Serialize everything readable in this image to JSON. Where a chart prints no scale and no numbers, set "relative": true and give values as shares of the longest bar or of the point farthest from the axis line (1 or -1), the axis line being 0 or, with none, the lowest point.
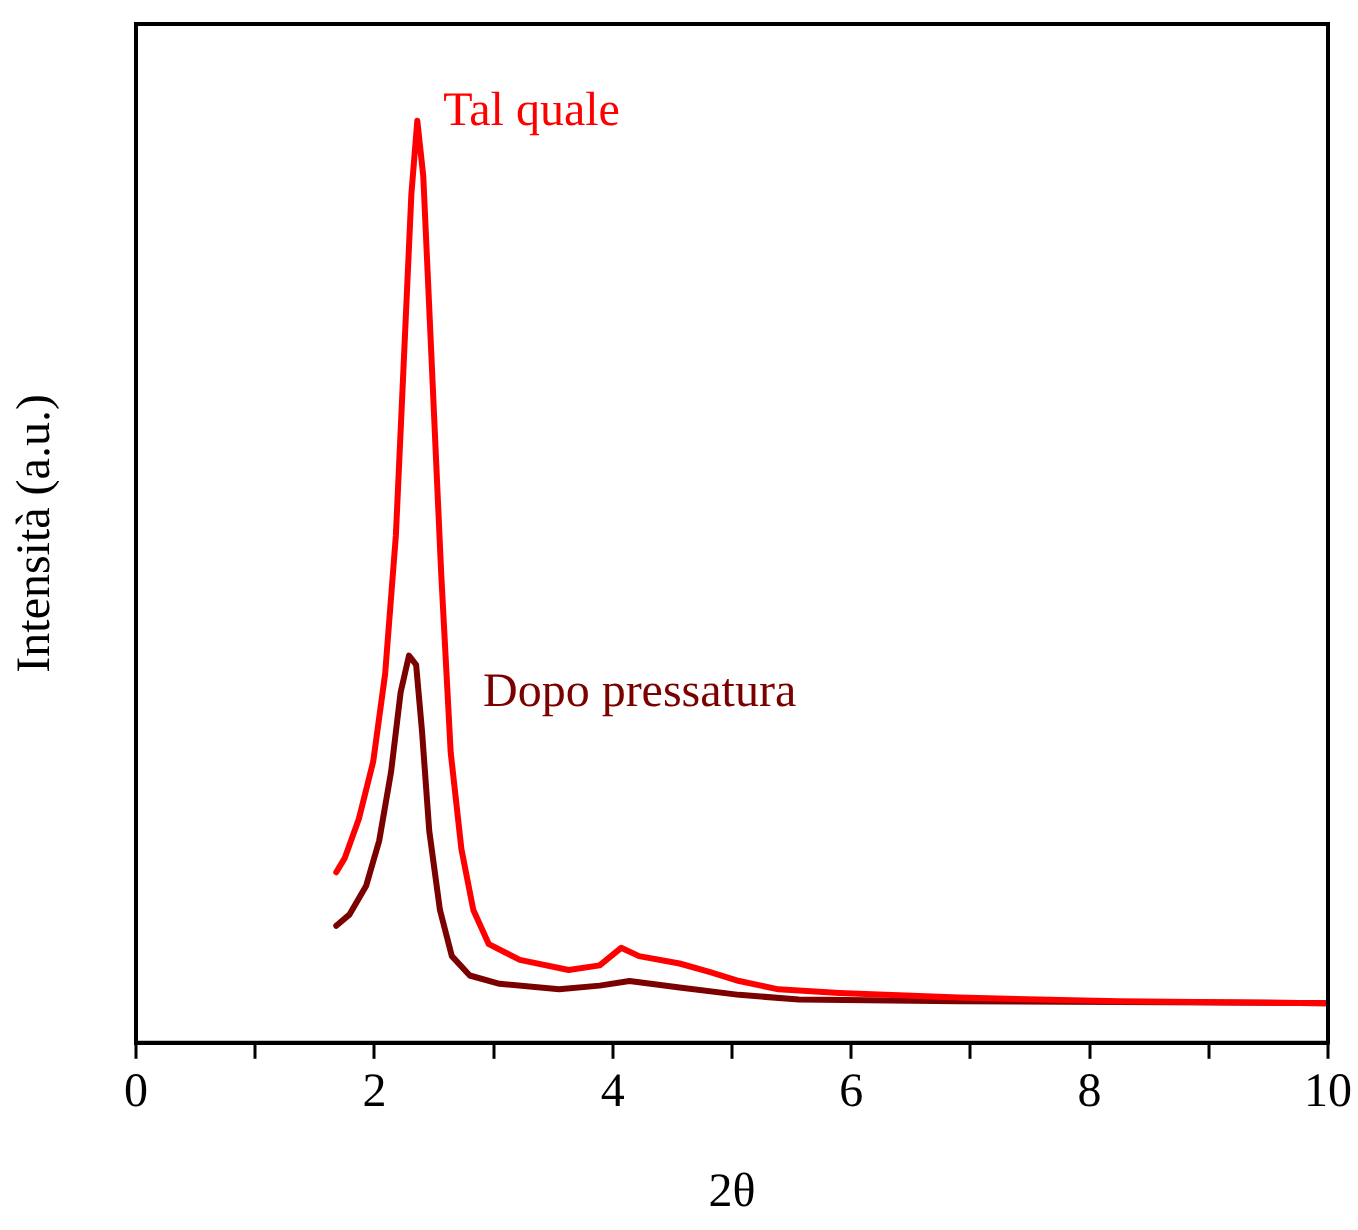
{
  "chart_data": {
    "type": "line",
    "xlabel": "2θ",
    "ylabel": "Intensità (a.u.)",
    "relative": true,
    "xlim": [
      0,
      10
    ],
    "xticks": [
      0,
      {
        "value": 1,
        "label": null
      },
      2,
      {
        "value": 3,
        "label": null
      },
      4,
      {
        "value": 5,
        "label": null
      },
      6,
      {
        "value": 7,
        "label": null
      },
      8,
      {
        "value": 9,
        "label": null
      },
      10
    ],
    "legend": false,
    "grid": false,
    "marker": "none",
    "line_style": "solid",
    "series": [
      {
        "name": "Tal quale",
        "color": "#ff0000",
        "x": [
          1.68,
          1.75,
          1.87,
          1.99,
          2.09,
          2.18,
          2.24,
          2.31,
          2.36,
          2.41,
          2.48,
          2.56,
          2.64,
          2.73,
          2.83,
          2.96,
          3.22,
          3.63,
          3.89,
          4.07,
          4.22,
          4.56,
          4.81,
          5.06,
          5.39,
          5.9,
          6.9,
          8.24,
          10
        ],
        "values": [
          0.185,
          0.2,
          0.243,
          0.305,
          0.4,
          0.55,
          0.72,
          0.92,
          1,
          0.94,
          0.74,
          0.51,
          0.315,
          0.21,
          0.144,
          0.107,
          0.09,
          0.079,
          0.084,
          0.103,
          0.094,
          0.086,
          0.077,
          0.067,
          0.058,
          0.054,
          0.049,
          0.045,
          0.043
        ]
      },
      {
        "name": "Dopo pressatura",
        "color": "#7b0000",
        "x": [
          1.68,
          1.79,
          1.93,
          2.04,
          2.14,
          2.22,
          2.29,
          2.35,
          2.4,
          2.46,
          2.55,
          2.65,
          2.8,
          3.05,
          3.55,
          3.89,
          4.14,
          4.56,
          5.06,
          5.56,
          6.9,
          10
        ],
        "values": [
          0.127,
          0.139,
          0.17,
          0.219,
          0.294,
          0.38,
          0.42,
          0.41,
          0.337,
          0.23,
          0.144,
          0.094,
          0.073,
          0.064,
          0.058,
          0.062,
          0.067,
          0.06,
          0.052,
          0.047,
          0.045,
          0.043
        ]
      }
    ]
  }
}
